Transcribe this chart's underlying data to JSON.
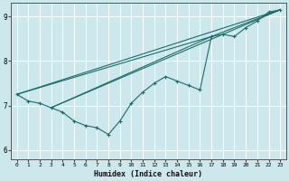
{
  "title": "",
  "xlabel": "Humidex (Indice chaleur)",
  "bg_color": "#cce8ec",
  "line_color": "#1a6b6b",
  "grid_color": "#b0d8dc",
  "xlim": [
    -0.5,
    23.5
  ],
  "ylim": [
    5.8,
    9.3
  ],
  "xticks": [
    0,
    1,
    2,
    3,
    4,
    5,
    6,
    7,
    8,
    9,
    10,
    11,
    12,
    13,
    14,
    15,
    16,
    17,
    18,
    19,
    20,
    21,
    22,
    23
  ],
  "yticks": [
    6,
    7,
    8,
    9
  ],
  "series": [
    {
      "x": [
        0,
        1,
        2,
        3,
        4,
        5,
        6,
        7,
        8,
        9,
        10,
        11,
        12,
        13,
        14,
        15,
        16,
        17,
        18,
        19,
        20,
        21,
        22,
        23
      ],
      "y": [
        7.25,
        7.1,
        7.05,
        6.95,
        6.85,
        6.65,
        6.55,
        6.5,
        6.35,
        6.65,
        7.05,
        7.3,
        7.5,
        7.65,
        7.55,
        7.45,
        7.35,
        8.55,
        8.6,
        8.55,
        8.75,
        8.9,
        9.1,
        9.15
      ],
      "markers": true
    },
    {
      "x": [
        0,
        23
      ],
      "y": [
        7.25,
        9.15
      ],
      "markers": false
    },
    {
      "x": [
        0,
        17,
        23
      ],
      "y": [
        7.25,
        8.55,
        9.15
      ],
      "markers": false
    },
    {
      "x": [
        3,
        4,
        5,
        6,
        7,
        8,
        9,
        10,
        11,
        12,
        13,
        14,
        15,
        16,
        17,
        18,
        19,
        20,
        21,
        22,
        23
      ],
      "y": [
        6.95,
        6.85,
        6.65,
        6.55,
        6.5,
        6.35,
        6.65,
        7.05,
        7.3,
        7.5,
        7.65,
        7.55,
        7.45,
        7.35,
        8.55,
        8.6,
        8.55,
        8.75,
        8.9,
        9.1,
        9.15
      ],
      "markers": true
    }
  ],
  "extra_lines": [
    {
      "x": [
        3,
        17
      ],
      "y": [
        6.95,
        8.55
      ]
    },
    {
      "x": [
        3,
        23
      ],
      "y": [
        6.95,
        9.15
      ]
    }
  ]
}
